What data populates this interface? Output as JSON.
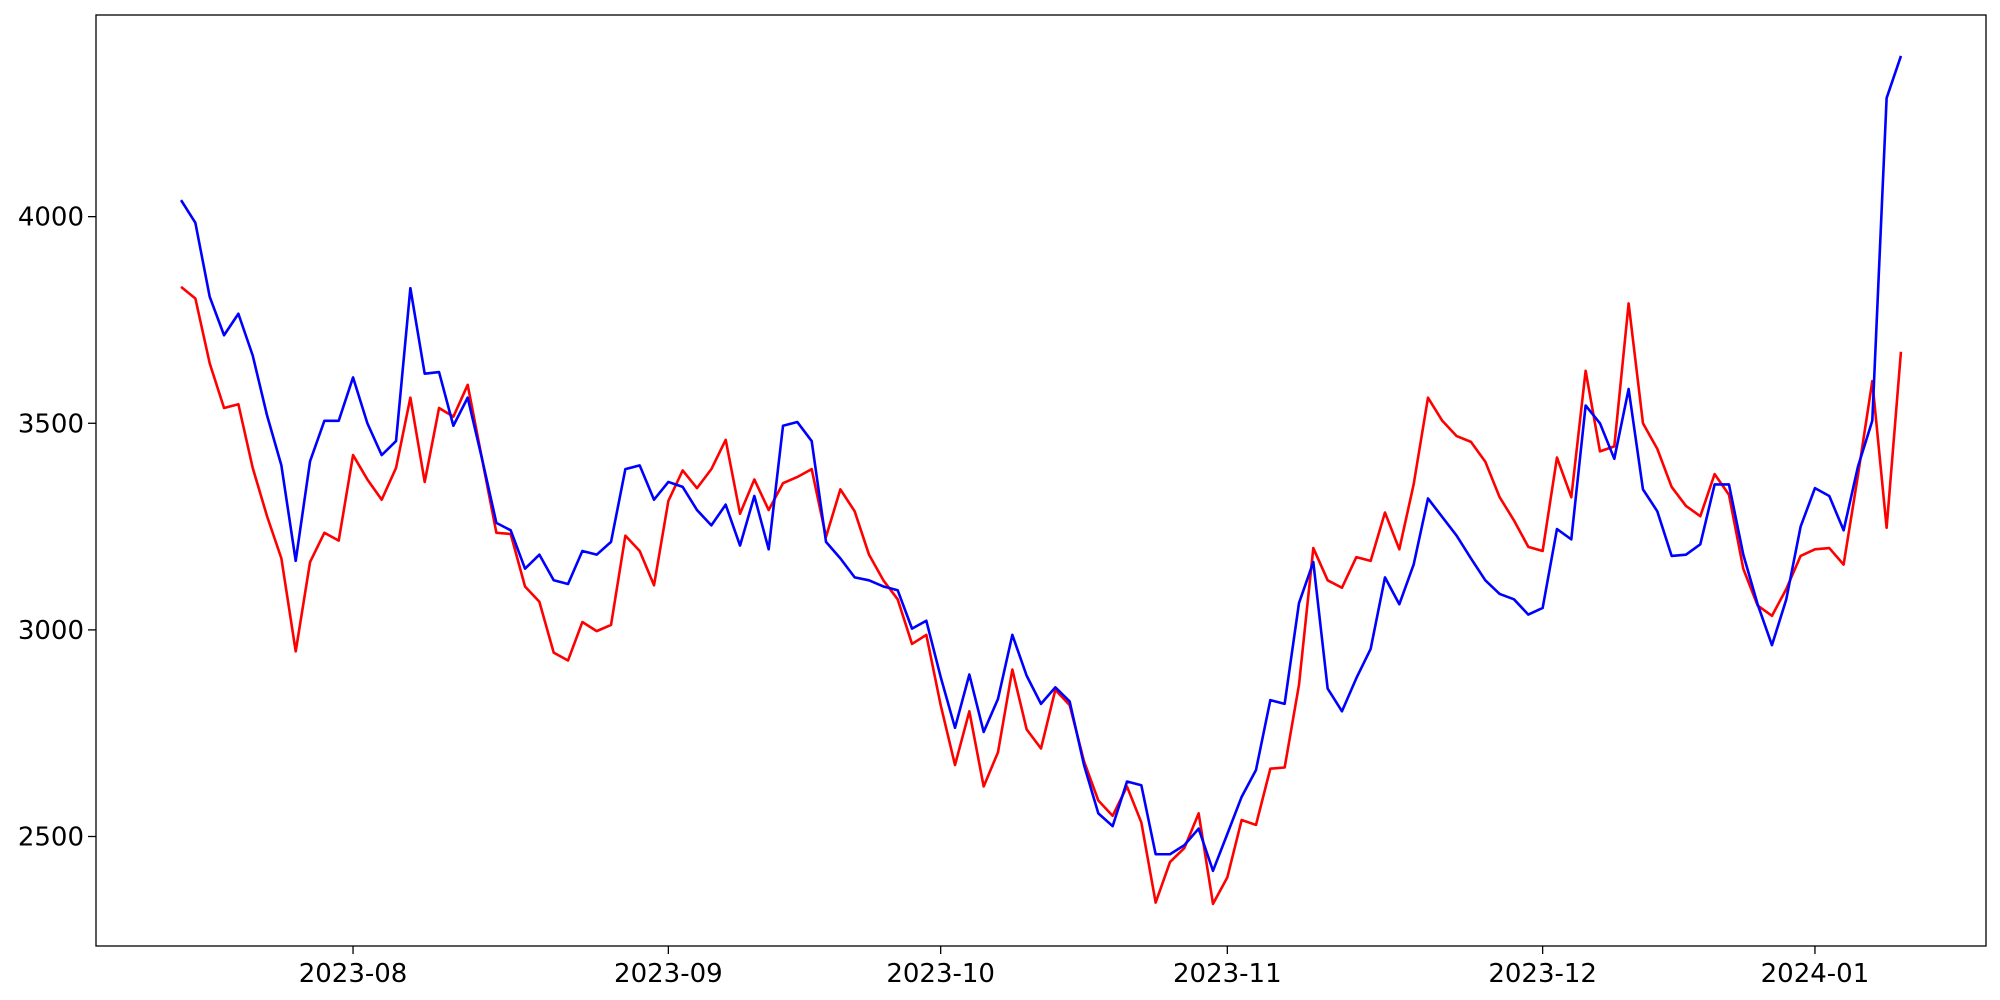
{
  "chart_data": {
    "type": "line",
    "categories": [
      null,
      null,
      null,
      null,
      null,
      null,
      null,
      null,
      null,
      null,
      null,
      null,
      "2023-08",
      null,
      null,
      null,
      null,
      null,
      null,
      null,
      null,
      null,
      null,
      null,
      null,
      null,
      null,
      null,
      null,
      null,
      null,
      null,
      null,
      null,
      "2023-09",
      null,
      null,
      null,
      null,
      null,
      null,
      null,
      null,
      null,
      null,
      null,
      null,
      null,
      null,
      null,
      null,
      null,
      null,
      "2023-10",
      null,
      null,
      null,
      null,
      null,
      null,
      null,
      null,
      null,
      null,
      null,
      null,
      null,
      null,
      null,
      null,
      null,
      null,
      null,
      "2023-11",
      null,
      null,
      null,
      null,
      null,
      null,
      null,
      null,
      null,
      null,
      null,
      null,
      null,
      null,
      null,
      null,
      null,
      null,
      null,
      null,
      null,
      "2023-12",
      null,
      null,
      null,
      null,
      null,
      null,
      null,
      null,
      null,
      null,
      null,
      null,
      null,
      null,
      null,
      null,
      null,
      null,
      "2024-01",
      null,
      null,
      null,
      null,
      null,
      null
    ],
    "series": [
      {
        "color": "#ff0000",
        "values": [
          3830,
          3802,
          3645,
          3537,
          3546,
          3392,
          3275,
          3173,
          2948,
          3164,
          3235,
          3216,
          3423,
          3364,
          3315,
          3392,
          3562,
          3358,
          3537,
          3516,
          3593,
          3414,
          3235,
          3232,
          3105,
          3068,
          2945,
          2926,
          3019,
          2997,
          3012,
          3228,
          3191,
          3108,
          3312,
          3386,
          3343,
          3389,
          3460,
          3281,
          3364,
          3290,
          3355,
          3370,
          3389,
          3225,
          3340,
          3287,
          3182,
          3120,
          3074,
          2966,
          2988,
          2818,
          2673,
          2803,
          2621,
          2704,
          2904,
          2759,
          2713,
          2855,
          2818,
          2682,
          2587,
          2550,
          2621,
          2534,
          2340,
          2438,
          2472,
          2556,
          2337,
          2401,
          2540,
          2528,
          2664,
          2667,
          2867,
          3198,
          3120,
          3102,
          3176,
          3167,
          3284,
          3195,
          3352,
          3562,
          3506,
          3469,
          3455,
          3407,
          3321,
          3265,
          3201,
          3191,
          3417,
          3321,
          3627,
          3432,
          3444,
          3790,
          3500,
          3438,
          3346,
          3300,
          3275,
          3377,
          3327,
          3148,
          3059,
          3034,
          3099,
          3179,
          3195,
          3198,
          3158,
          3374,
          3602,
          3247,
          3673
        ]
      },
      {
        "color": "#0000ff",
        "values": [
          4040,
          3985,
          3806,
          3713,
          3765,
          3664,
          3519,
          3398,
          3167,
          3408,
          3506,
          3506,
          3611,
          3500,
          3423,
          3457,
          3827,
          3620,
          3624,
          3494,
          3562,
          3414,
          3259,
          3241,
          3148,
          3182,
          3120,
          3111,
          3191,
          3182,
          3213,
          3389,
          3398,
          3315,
          3358,
          3346,
          3290,
          3253,
          3303,
          3204,
          3324,
          3195,
          3494,
          3503,
          3457,
          3213,
          3173,
          3127,
          3120,
          3105,
          3096,
          3003,
          3022,
          2886,
          2763,
          2892,
          2753,
          2833,
          2988,
          2889,
          2821,
          2861,
          2827,
          2673,
          2556,
          2525,
          2633,
          2624,
          2457,
          2457,
          2479,
          2519,
          2417,
          2506,
          2596,
          2661,
          2830,
          2821,
          3065,
          3164,
          2858,
          2803,
          2883,
          2954,
          3127,
          3062,
          3158,
          3318,
          3273,
          3228,
          3173,
          3120,
          3087,
          3074,
          3037,
          3053,
          3244,
          3219,
          3543,
          3500,
          3414,
          3583,
          3340,
          3287,
          3179,
          3182,
          3207,
          3352,
          3352,
          3182,
          3062,
          2963,
          3074,
          3250,
          3343,
          3324,
          3241,
          3395,
          3506,
          4287,
          4389
        ]
      }
    ],
    "ylim": [
      2235,
      4488
    ],
    "yticks": [
      2500,
      3000,
      3500,
      4000
    ],
    "grid": false
  }
}
